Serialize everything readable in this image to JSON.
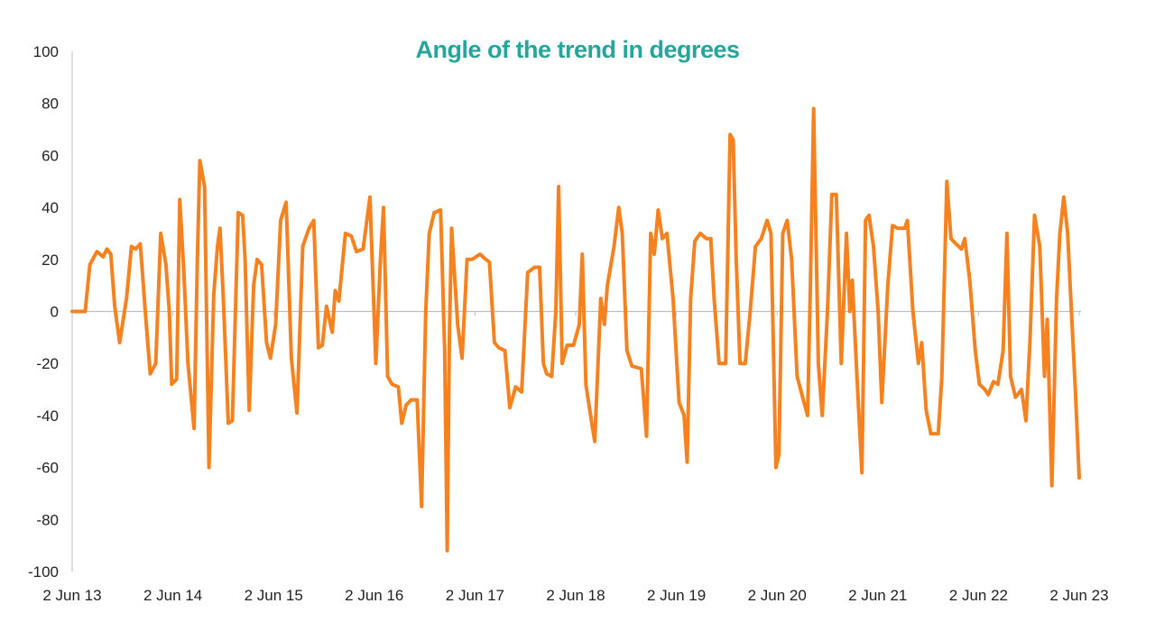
{
  "chart_data": {
    "type": "line",
    "title": "Angle of the trend in degrees",
    "xlabel": "",
    "ylabel": "",
    "ylim": [
      -100,
      100
    ],
    "yticks": [
      -100,
      -80,
      -60,
      -40,
      -20,
      0,
      20,
      40,
      60,
      80,
      100
    ],
    "x_tick_labels": [
      "2 Jun 13",
      "2 Jun 14",
      "2 Jun 15",
      "2 Jun 16",
      "2 Jun 17",
      "2 Jun 18",
      "2 Jun 19",
      "2 Jun 20",
      "2 Jun 21",
      "2 Jun 22",
      "2 Jun 23"
    ],
    "x_axis_start": "2013-06-02",
    "x_axis_end": "2023-06-02",
    "grid": false,
    "colors": {
      "line": "#F5821F",
      "title": "#26A69A",
      "axis": "#bfbfbf"
    },
    "series": [
      {
        "values": [
          [
            "2013-06-02",
            0
          ],
          [
            "2013-07-19",
            0
          ],
          [
            "2013-08-05",
            18
          ],
          [
            "2013-08-31",
            23
          ],
          [
            "2013-09-22",
            21
          ],
          [
            "2013-10-06",
            24
          ],
          [
            "2013-10-20",
            22
          ],
          [
            "2013-11-03",
            2
          ],
          [
            "2013-11-21",
            -12
          ],
          [
            "2013-12-16",
            5
          ],
          [
            "2014-01-03",
            25
          ],
          [
            "2014-01-18",
            24
          ],
          [
            "2014-02-04",
            26
          ],
          [
            "2014-02-22",
            0
          ],
          [
            "2014-03-12",
            -24
          ],
          [
            "2014-04-01",
            -20
          ],
          [
            "2014-04-19",
            30
          ],
          [
            "2014-05-08",
            18
          ],
          [
            "2014-05-20",
            0
          ],
          [
            "2014-05-29",
            -28
          ],
          [
            "2014-06-16",
            -26
          ],
          [
            "2014-06-27",
            43
          ],
          [
            "2014-07-12",
            15
          ],
          [
            "2014-07-27",
            -20
          ],
          [
            "2014-08-18",
            -45
          ],
          [
            "2014-08-30",
            20
          ],
          [
            "2014-09-08",
            58
          ],
          [
            "2014-09-25",
            48
          ],
          [
            "2014-10-11",
            -60
          ],
          [
            "2014-10-28",
            6
          ],
          [
            "2014-11-11",
            25
          ],
          [
            "2014-11-20",
            32
          ],
          [
            "2014-12-02",
            5
          ],
          [
            "2014-12-20",
            -43
          ],
          [
            "2015-01-04",
            -42
          ],
          [
            "2015-01-25",
            38
          ],
          [
            "2015-02-10",
            37
          ],
          [
            "2015-02-19",
            20
          ],
          [
            "2015-03-06",
            -38
          ],
          [
            "2015-03-22",
            10
          ],
          [
            "2015-04-04",
            20
          ],
          [
            "2015-04-20",
            18
          ],
          [
            "2015-05-08",
            -12
          ],
          [
            "2015-05-22",
            -18
          ],
          [
            "2015-06-10",
            -5
          ],
          [
            "2015-06-28",
            35
          ],
          [
            "2015-07-18",
            42
          ],
          [
            "2015-08-06",
            -18
          ],
          [
            "2015-08-26",
            -39
          ],
          [
            "2015-09-16",
            25
          ],
          [
            "2015-10-09",
            32
          ],
          [
            "2015-10-26",
            35
          ],
          [
            "2015-11-12",
            -14
          ],
          [
            "2015-11-26",
            -13
          ],
          [
            "2015-12-11",
            2
          ],
          [
            "2016-01-01",
            -8
          ],
          [
            "2016-01-12",
            8
          ],
          [
            "2016-01-25",
            4
          ],
          [
            "2016-02-18",
            30
          ],
          [
            "2016-03-10",
            29
          ],
          [
            "2016-03-29",
            23
          ],
          [
            "2016-04-22",
            24
          ],
          [
            "2016-05-17",
            44
          ],
          [
            "2016-06-07",
            -20
          ],
          [
            "2016-06-24",
            20
          ],
          [
            "2016-07-05",
            40
          ],
          [
            "2016-07-20",
            -25
          ],
          [
            "2016-08-05",
            -28
          ],
          [
            "2016-08-28",
            -29
          ],
          [
            "2016-09-09",
            -43
          ],
          [
            "2016-09-25",
            -36
          ],
          [
            "2016-10-13",
            -34
          ],
          [
            "2016-11-04",
            -34
          ],
          [
            "2016-11-20",
            -75
          ],
          [
            "2016-12-05",
            0
          ],
          [
            "2016-12-18",
            30
          ],
          [
            "2017-01-05",
            38
          ],
          [
            "2017-01-28",
            39
          ],
          [
            "2017-02-12",
            -15
          ],
          [
            "2017-02-21",
            -92
          ],
          [
            "2017-03-01",
            -10
          ],
          [
            "2017-03-09",
            32
          ],
          [
            "2017-03-31",
            -5
          ],
          [
            "2017-04-16",
            -18
          ],
          [
            "2017-05-04",
            20
          ],
          [
            "2017-05-22",
            20
          ],
          [
            "2017-06-20",
            22
          ],
          [
            "2017-07-11",
            20
          ],
          [
            "2017-07-24",
            19
          ],
          [
            "2017-08-11",
            -12
          ],
          [
            "2017-08-28",
            -14
          ],
          [
            "2017-09-18",
            -15
          ],
          [
            "2017-10-06",
            -37
          ],
          [
            "2017-10-27",
            -29
          ],
          [
            "2017-11-18",
            -31
          ],
          [
            "2017-12-10",
            15
          ],
          [
            "2018-01-04",
            17
          ],
          [
            "2018-01-22",
            17
          ],
          [
            "2018-02-05",
            -20
          ],
          [
            "2018-02-17",
            -24
          ],
          [
            "2018-03-07",
            -25
          ],
          [
            "2018-03-22",
            0
          ],
          [
            "2018-04-01",
            48
          ],
          [
            "2018-04-14",
            -20
          ],
          [
            "2018-05-02",
            -13
          ],
          [
            "2018-05-25",
            -13
          ],
          [
            "2018-06-15",
            -5
          ],
          [
            "2018-06-26",
            22
          ],
          [
            "2018-07-09",
            -28
          ],
          [
            "2018-07-23",
            -38
          ],
          [
            "2018-08-10",
            -50
          ],
          [
            "2018-09-01",
            5
          ],
          [
            "2018-09-14",
            -5
          ],
          [
            "2018-09-25",
            10
          ],
          [
            "2018-10-19",
            25
          ],
          [
            "2018-11-05",
            40
          ],
          [
            "2018-11-18",
            30
          ],
          [
            "2018-12-05",
            -15
          ],
          [
            "2018-12-23",
            -21
          ],
          [
            "2019-01-26",
            -22
          ],
          [
            "2019-02-14",
            -48
          ],
          [
            "2019-03-01",
            30
          ],
          [
            "2019-03-14",
            22
          ],
          [
            "2019-03-28",
            39
          ],
          [
            "2019-04-12",
            28
          ],
          [
            "2019-04-29",
            30
          ],
          [
            "2019-05-21",
            5
          ],
          [
            "2019-06-12",
            -35
          ],
          [
            "2019-06-30",
            -40
          ],
          [
            "2019-07-11",
            -58
          ],
          [
            "2019-07-24",
            5
          ],
          [
            "2019-08-08",
            27
          ],
          [
            "2019-08-28",
            30
          ],
          [
            "2019-09-19",
            28
          ],
          [
            "2019-10-05",
            28
          ],
          [
            "2019-10-17",
            5
          ],
          [
            "2019-11-04",
            -20
          ],
          [
            "2019-11-28",
            -20
          ],
          [
            "2019-12-14",
            68
          ],
          [
            "2019-12-25",
            66
          ],
          [
            "2020-01-05",
            20
          ],
          [
            "2020-01-19",
            -20
          ],
          [
            "2020-02-07",
            -20
          ],
          [
            "2020-02-25",
            0
          ],
          [
            "2020-03-15",
            25
          ],
          [
            "2020-04-05",
            28
          ],
          [
            "2020-04-26",
            35
          ],
          [
            "2020-05-10",
            30
          ],
          [
            "2020-05-28",
            -60
          ],
          [
            "2020-06-08",
            -55
          ],
          [
            "2020-06-22",
            30
          ],
          [
            "2020-07-08",
            35
          ],
          [
            "2020-07-24",
            20
          ],
          [
            "2020-08-13",
            -25
          ],
          [
            "2020-09-02",
            -33
          ],
          [
            "2020-09-20",
            -40
          ],
          [
            "2020-09-30",
            10
          ],
          [
            "2020-10-12",
            78
          ],
          [
            "2020-10-29",
            -20
          ],
          [
            "2020-11-12",
            -40
          ],
          [
            "2020-12-01",
            0
          ],
          [
            "2020-12-17",
            45
          ],
          [
            "2021-01-02",
            45
          ],
          [
            "2021-01-20",
            -20
          ],
          [
            "2021-02-08",
            30
          ],
          [
            "2021-02-20",
            0
          ],
          [
            "2021-03-01",
            12
          ],
          [
            "2021-03-18",
            -25
          ],
          [
            "2021-04-05",
            -62
          ],
          [
            "2021-04-18",
            35
          ],
          [
            "2021-05-01",
            37
          ],
          [
            "2021-05-17",
            25
          ],
          [
            "2021-06-03",
            0
          ],
          [
            "2021-06-16",
            -35
          ],
          [
            "2021-07-08",
            10
          ],
          [
            "2021-07-25",
            33
          ],
          [
            "2021-08-13",
            32
          ],
          [
            "2021-09-07",
            32
          ],
          [
            "2021-09-17",
            35
          ],
          [
            "2021-10-07",
            0
          ],
          [
            "2021-10-27",
            -20
          ],
          [
            "2021-11-08",
            -12
          ],
          [
            "2021-11-24",
            -38
          ],
          [
            "2021-12-11",
            -47
          ],
          [
            "2022-01-07",
            -47
          ],
          [
            "2022-01-20",
            -25
          ],
          [
            "2022-02-07",
            50
          ],
          [
            "2022-02-22",
            28
          ],
          [
            "2022-03-12",
            26
          ],
          [
            "2022-04-01",
            24
          ],
          [
            "2022-04-13",
            28
          ],
          [
            "2022-05-01",
            12
          ],
          [
            "2022-05-21",
            -15
          ],
          [
            "2022-06-05",
            -28
          ],
          [
            "2022-06-25",
            -30
          ],
          [
            "2022-07-07",
            -32
          ],
          [
            "2022-07-26",
            -27
          ],
          [
            "2022-08-11",
            -28
          ],
          [
            "2022-08-30",
            -15
          ],
          [
            "2022-09-13",
            30
          ],
          [
            "2022-09-26",
            -25
          ],
          [
            "2022-10-14",
            -33
          ],
          [
            "2022-11-05",
            -30
          ],
          [
            "2022-11-21",
            -42
          ],
          [
            "2022-12-06",
            -10
          ],
          [
            "2022-12-22",
            37
          ],
          [
            "2023-01-10",
            25
          ],
          [
            "2023-01-27",
            -25
          ],
          [
            "2023-02-06",
            -3
          ],
          [
            "2023-02-23",
            -67
          ],
          [
            "2023-03-12",
            5
          ],
          [
            "2023-03-24",
            30
          ],
          [
            "2023-04-07",
            44
          ],
          [
            "2023-04-21",
            30
          ],
          [
            "2023-05-07",
            -5
          ],
          [
            "2023-05-19",
            -30
          ],
          [
            "2023-06-02",
            -64
          ]
        ]
      }
    ]
  }
}
